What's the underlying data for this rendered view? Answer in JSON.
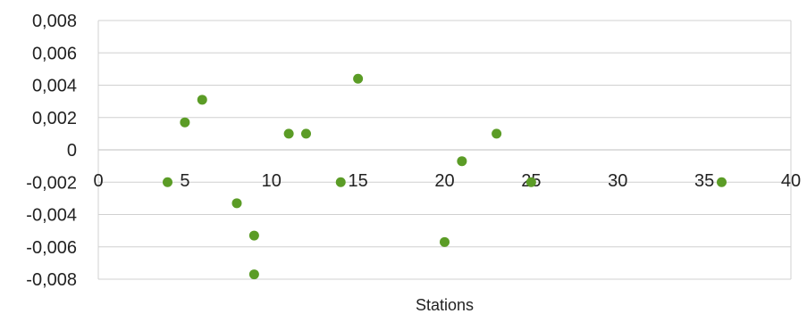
{
  "chart_data": {
    "type": "scatter",
    "title": "",
    "xlabel": "Stations",
    "ylabel": "",
    "xlim": [
      0,
      40
    ],
    "ylim": [
      -0.008,
      0.008
    ],
    "x_ticks": [
      0,
      5,
      10,
      15,
      20,
      25,
      30,
      35,
      40
    ],
    "x_tick_labels": [
      "0",
      "5",
      "10",
      "15",
      "20",
      "25",
      "30",
      "35",
      "40"
    ],
    "y_ticks": [
      0.008,
      0.006,
      0.004,
      0.002,
      0,
      -0.002,
      -0.004,
      -0.006,
      -0.008
    ],
    "y_tick_labels": [
      "0,008",
      "0,006",
      "0,004",
      "0,002",
      "0",
      "-0,002",
      "-0,004",
      "-0,006",
      "-0,008"
    ],
    "grid": true,
    "legend": "none",
    "colors": {
      "marker": "#5b9c26",
      "grid": "#d0d0d0",
      "text": "#222222"
    },
    "series": [
      {
        "points": [
          {
            "x": 4,
            "y": -0.002
          },
          {
            "x": 5,
            "y": 0.0017
          },
          {
            "x": 6,
            "y": 0.0031
          },
          {
            "x": 8,
            "y": -0.0033
          },
          {
            "x": 9,
            "y": -0.0053
          },
          {
            "x": 9,
            "y": -0.0077
          },
          {
            "x": 11,
            "y": 0.001
          },
          {
            "x": 12,
            "y": 0.001
          },
          {
            "x": 14,
            "y": -0.002
          },
          {
            "x": 15,
            "y": 0.0044
          },
          {
            "x": 20,
            "y": -0.0057
          },
          {
            "x": 21,
            "y": -0.0007
          },
          {
            "x": 23,
            "y": 0.001
          },
          {
            "x": 25,
            "y": -0.002
          },
          {
            "x": 36,
            "y": -0.002
          }
        ]
      }
    ]
  }
}
